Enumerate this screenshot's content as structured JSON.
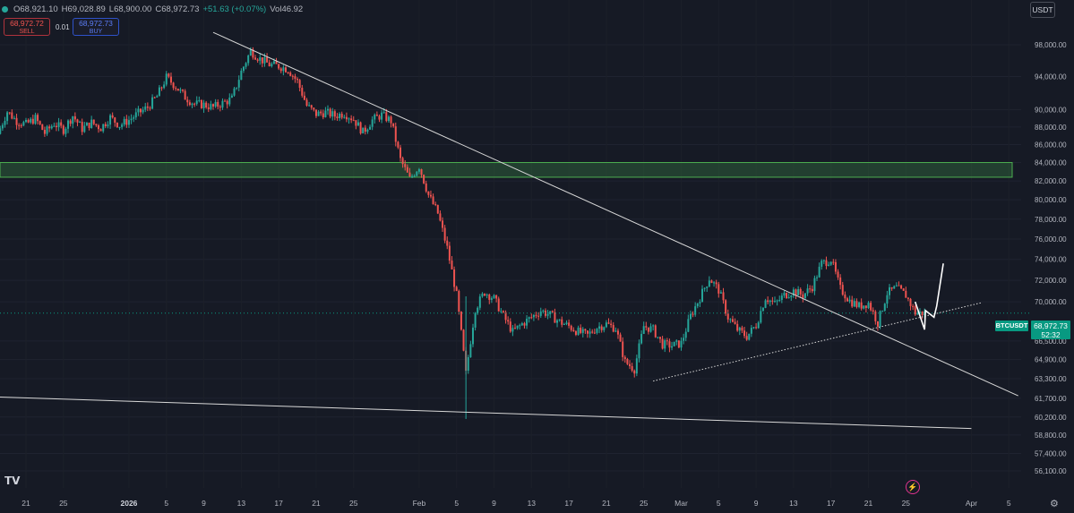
{
  "header": {
    "open": "O68,921.10",
    "high": "H69,028.89",
    "low": "L68,900.00",
    "close": "C68,972.73",
    "change": "+51.63 (+0.07%)",
    "volume": "Vol46.92"
  },
  "trade": {
    "sell_price": "68,972.72",
    "sell_label": "SELL",
    "buy_price": "68,972.73",
    "buy_label": "BUY",
    "qty": "0.01"
  },
  "currency": "USDT",
  "price_tag": {
    "symbol": "BTCUSDT",
    "price": "68,972.73",
    "countdown": "52:32"
  },
  "colors": {
    "up": "#26a69a",
    "down": "#ef5350",
    "zone": "#2e5f3a",
    "zone_border": "#4caf50"
  },
  "icons": [
    "tradingview-logo-icon",
    "lightning-icon",
    "settings-icon"
  ],
  "chart_data": {
    "type": "candlestick",
    "symbol": "BTCUSDT",
    "y_scale": "log",
    "y_ticks": [
      "98,000.00",
      "94,000.00",
      "90,000.00",
      "88,000.00",
      "86,000.00",
      "84,000.00",
      "82,000.00",
      "80,000.00",
      "78,000.00",
      "76,000.00",
      "74,000.00",
      "72,000.00",
      "70,000.00",
      "66,500.00",
      "64,900.00",
      "63,300.00",
      "61,700.00",
      "60,200.00",
      "58,800.00",
      "57,400.00",
      "56,100.00"
    ],
    "y_tick_values": [
      98000,
      94000,
      90000,
      88000,
      86000,
      84000,
      82000,
      80000,
      78000,
      76000,
      74000,
      72000,
      70000,
      66500,
      64900,
      63300,
      61700,
      60200,
      58800,
      57400,
      56100
    ],
    "x_ticks": [
      {
        "label": "21",
        "date": "2025-12-21"
      },
      {
        "label": "25",
        "date": "2025-12-25"
      },
      {
        "label": "2026",
        "date": "2026-01-01"
      },
      {
        "label": "5",
        "date": "2026-01-05"
      },
      {
        "label": "9",
        "date": "2026-01-09"
      },
      {
        "label": "13",
        "date": "2026-01-13"
      },
      {
        "label": "17",
        "date": "2026-01-17"
      },
      {
        "label": "21",
        "date": "2026-01-21"
      },
      {
        "label": "25",
        "date": "2026-01-25"
      },
      {
        "label": "Feb",
        "date": "2026-02-01"
      },
      {
        "label": "5",
        "date": "2026-02-05"
      },
      {
        "label": "9",
        "date": "2026-02-09"
      },
      {
        "label": "13",
        "date": "2026-02-13"
      },
      {
        "label": "17",
        "date": "2026-02-17"
      },
      {
        "label": "21",
        "date": "2026-02-21"
      },
      {
        "label": "25",
        "date": "2026-02-25"
      },
      {
        "label": "Mar",
        "date": "2026-03-01"
      },
      {
        "label": "5",
        "date": "2026-03-05"
      },
      {
        "label": "9",
        "date": "2026-03-09"
      },
      {
        "label": "13",
        "date": "2026-03-13"
      },
      {
        "label": "17",
        "date": "2026-03-17"
      },
      {
        "label": "21",
        "date": "2026-03-21"
      },
      {
        "label": "25",
        "date": "2026-03-25"
      },
      {
        "label": "Apr",
        "date": "2026-04-01"
      },
      {
        "label": "5",
        "date": "2026-04-05"
      }
    ],
    "bold_x_labels": [
      "2026"
    ],
    "last_price": 68972.73,
    "price_path": [
      [
        "2025-12-18",
        87200
      ],
      [
        "2025-12-19",
        89800
      ],
      [
        "2025-12-20",
        88700
      ],
      [
        "2025-12-21",
        88300
      ],
      [
        "2025-12-22",
        89000
      ],
      [
        "2025-12-23",
        87300
      ],
      [
        "2025-12-24",
        88400
      ],
      [
        "2025-12-25",
        87700
      ],
      [
        "2025-12-26",
        89300
      ],
      [
        "2025-12-27",
        87800
      ],
      [
        "2025-12-28",
        88500
      ],
      [
        "2025-12-29",
        87900
      ],
      [
        "2025-12-30",
        89100
      ],
      [
        "2025-12-31",
        88200
      ],
      [
        "2026-01-01",
        88800
      ],
      [
        "2026-01-02",
        89600
      ],
      [
        "2026-01-03",
        90300
      ],
      [
        "2026-01-04",
        91600
      ],
      [
        "2026-01-05",
        93900
      ],
      [
        "2026-01-06",
        92800
      ],
      [
        "2026-01-07",
        91500
      ],
      [
        "2026-01-08",
        90700
      ],
      [
        "2026-01-09",
        90600
      ],
      [
        "2026-01-10",
        90300
      ],
      [
        "2026-01-11",
        90800
      ],
      [
        "2026-01-12",
        91300
      ],
      [
        "2026-01-13",
        94600
      ],
      [
        "2026-01-14",
        97200
      ],
      [
        "2026-01-15",
        96200
      ],
      [
        "2026-01-16",
        95500
      ],
      [
        "2026-01-17",
        95300
      ],
      [
        "2026-01-18",
        94900
      ],
      [
        "2026-01-19",
        93400
      ],
      [
        "2026-01-20",
        90500
      ],
      [
        "2026-01-21",
        89500
      ],
      [
        "2026-01-22",
        89700
      ],
      [
        "2026-01-23",
        89300
      ],
      [
        "2026-01-24",
        89600
      ],
      [
        "2026-01-25",
        88900
      ],
      [
        "2026-01-26",
        87400
      ],
      [
        "2026-01-27",
        88800
      ],
      [
        "2026-01-28",
        89400
      ],
      [
        "2026-01-29",
        88700
      ],
      [
        "2026-01-30",
        84300
      ],
      [
        "2026-01-31",
        82200
      ],
      [
        "2026-02-01",
        83600
      ],
      [
        "2026-02-02",
        80500
      ],
      [
        "2026-02-03",
        78600
      ],
      [
        "2026-02-04",
        75100
      ],
      [
        "2026-02-05",
        70600
      ],
      [
        "2026-02-06",
        63700
      ],
      [
        "2026-02-07",
        69400
      ],
      [
        "2026-02-08",
        70900
      ],
      [
        "2026-02-09",
        70300
      ],
      [
        "2026-02-10",
        68700
      ],
      [
        "2026-02-11",
        67300
      ],
      [
        "2026-02-12",
        68000
      ],
      [
        "2026-02-13",
        68600
      ],
      [
        "2026-02-14",
        69200
      ],
      [
        "2026-02-15",
        68800
      ],
      [
        "2026-02-16",
        68200
      ],
      [
        "2026-02-17",
        67800
      ],
      [
        "2026-02-18",
        67300
      ],
      [
        "2026-02-19",
        67000
      ],
      [
        "2026-02-20",
        67700
      ],
      [
        "2026-02-21",
        68000
      ],
      [
        "2026-02-22",
        67600
      ],
      [
        "2026-02-23",
        64700
      ],
      [
        "2026-02-24",
        64100
      ],
      [
        "2026-02-25",
        67800
      ],
      [
        "2026-02-26",
        67500
      ],
      [
        "2026-02-27",
        66200
      ],
      [
        "2026-02-28",
        66100
      ],
      [
        "2026-03-01",
        66300
      ],
      [
        "2026-03-02",
        68700
      ],
      [
        "2026-03-03",
        70400
      ],
      [
        "2026-03-04",
        72200
      ],
      [
        "2026-03-05",
        71100
      ],
      [
        "2026-03-06",
        68600
      ],
      [
        "2026-03-07",
        67500
      ],
      [
        "2026-03-08",
        66900
      ],
      [
        "2026-03-09",
        67900
      ],
      [
        "2026-03-10",
        70400
      ],
      [
        "2026-03-11",
        69800
      ],
      [
        "2026-03-12",
        70600
      ],
      [
        "2026-03-13",
        71000
      ],
      [
        "2026-03-14",
        70600
      ],
      [
        "2026-03-15",
        71400
      ],
      [
        "2026-03-16",
        73600
      ],
      [
        "2026-03-17",
        74000
      ],
      [
        "2026-03-18",
        71200
      ],
      [
        "2026-03-19",
        70100
      ],
      [
        "2026-03-20",
        69600
      ],
      [
        "2026-03-21",
        69900
      ],
      [
        "2026-03-22",
        68100
      ],
      [
        "2026-03-23",
        70800
      ],
      [
        "2026-03-24",
        71300
      ],
      [
        "2026-03-25",
        70600
      ],
      [
        "2026-03-26",
        69000
      ],
      [
        "2026-03-27",
        68972.73
      ]
    ],
    "overlays": {
      "resistance_zone": {
        "top": 84000,
        "bottom": 82400,
        "from": "2025-12-18",
        "to": "2026-04-06"
      },
      "descending_trendline": [
        [
          "2026-01-10",
          99600
        ],
        [
          "2026-04-06",
          61900
        ]
      ],
      "lower_support_line": [
        [
          "2025-12-18",
          61800
        ],
        [
          "2026-04-01",
          59300
        ]
      ],
      "rising_dotted_line": [
        [
          "2026-02-26",
          63100
        ],
        [
          "2026-04-02",
          69900
        ]
      ],
      "projection_path": [
        [
          "2026-03-26",
          70000
        ],
        [
          "2026-03-27",
          67500
        ],
        [
          "2026-03-27",
          69200
        ],
        [
          "2026-03-28",
          68600
        ],
        [
          "2026-03-28",
          69600
        ],
        [
          "2026-03-29",
          73600
        ]
      ]
    }
  }
}
